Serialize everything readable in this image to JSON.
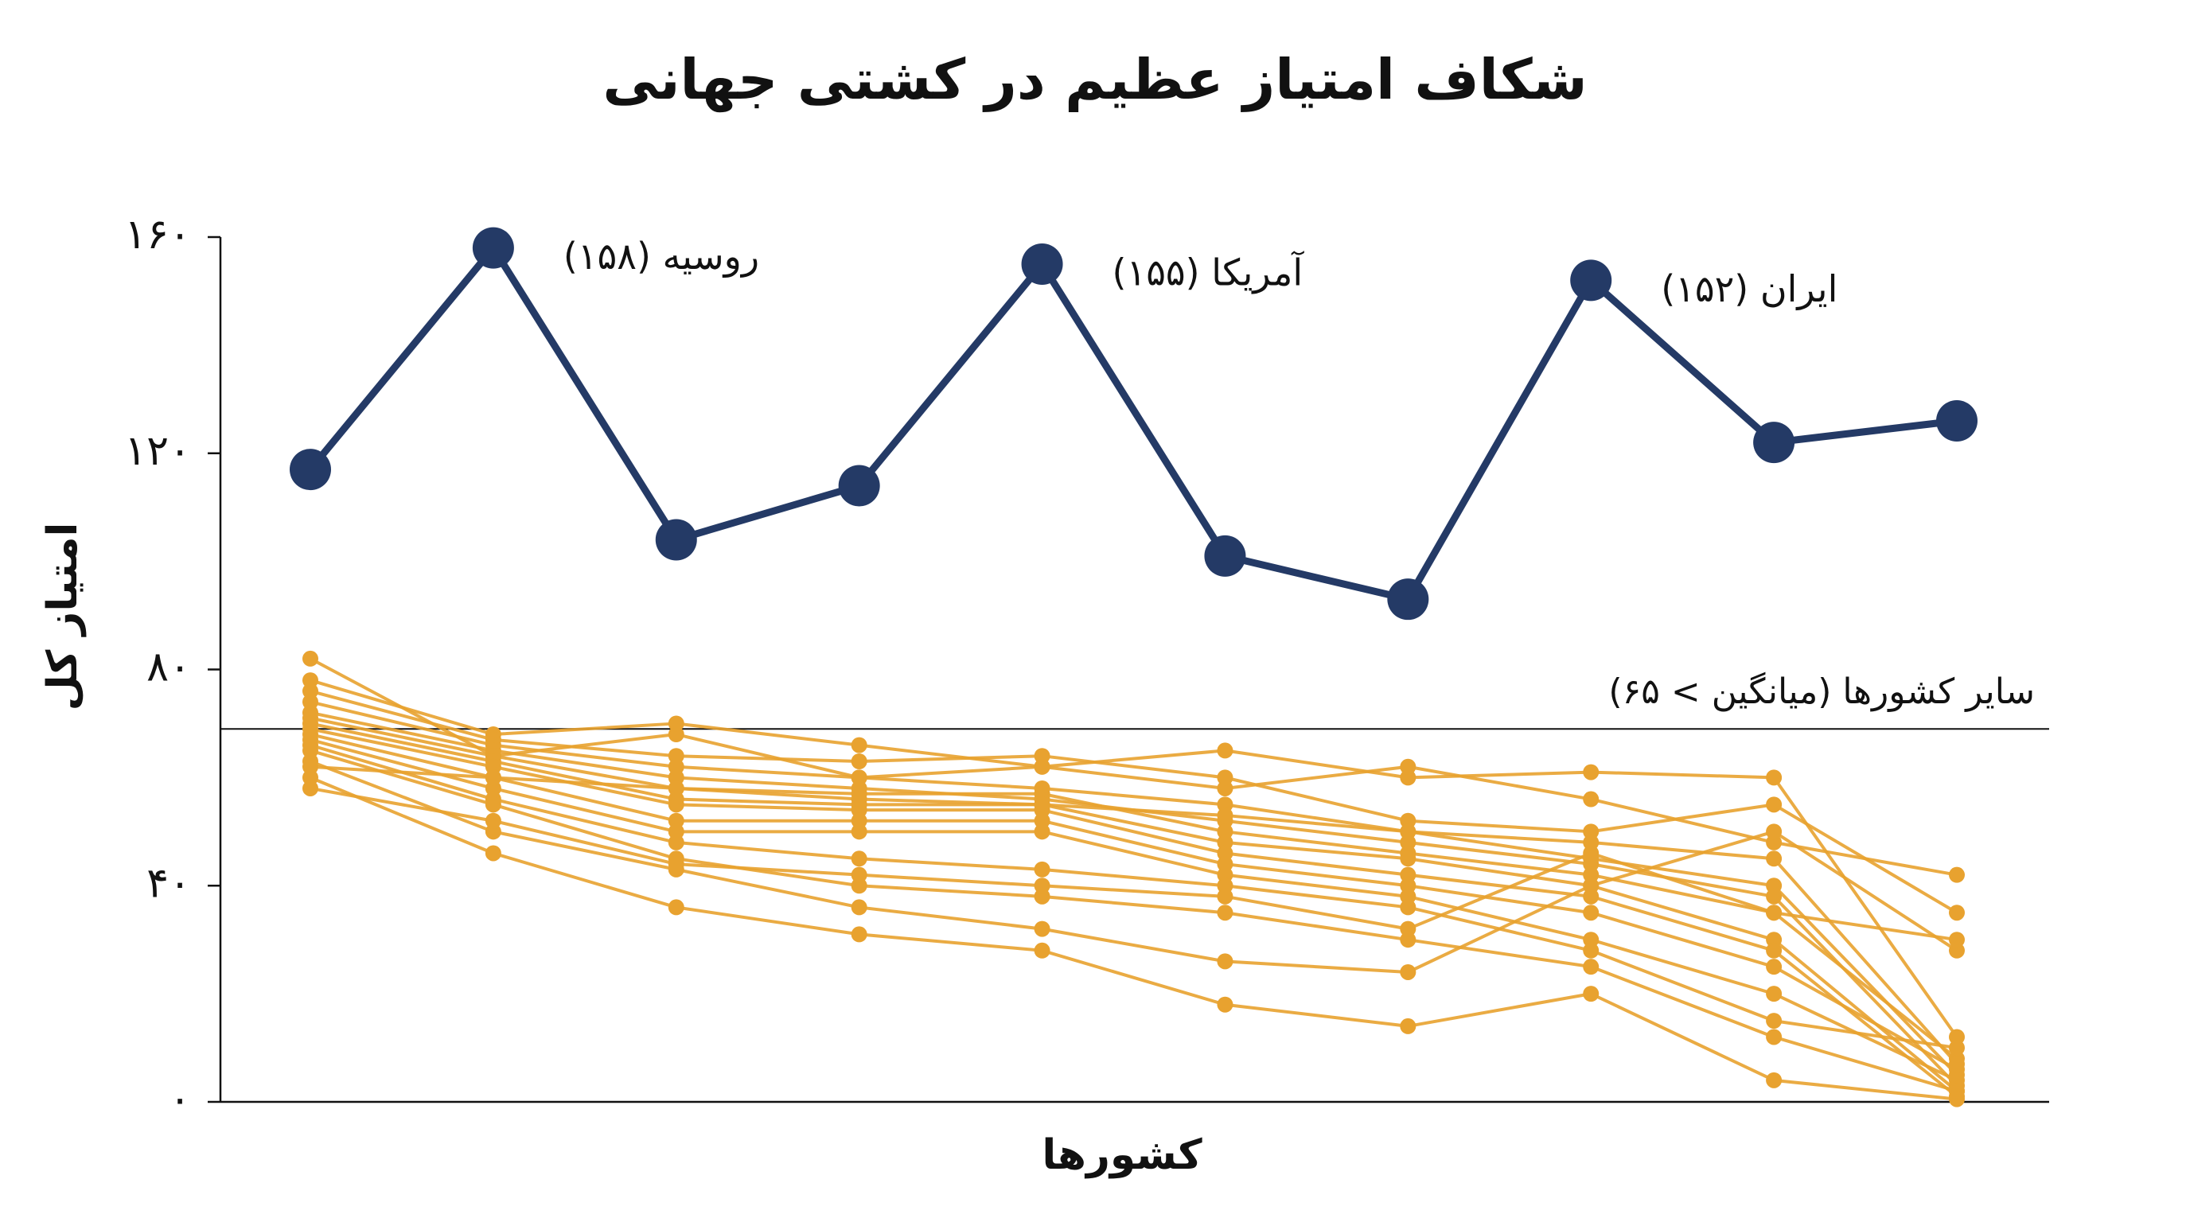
{
  "chart_data": {
    "type": "line",
    "title": "شکاف امتیاز عظیم در کشتی جهانی",
    "x_label": "کشورها",
    "y_label": "امتیاز کل",
    "categories": [
      null,
      null,
      null,
      null,
      null,
      null,
      null,
      null,
      null,
      null
    ],
    "ylim": [
      0,
      160
    ],
    "yticks": [
      {
        "value": 0,
        "label": "۰"
      },
      {
        "value": 40,
        "label": "۴۰"
      },
      {
        "value": 80,
        "label": "۸۰"
      },
      {
        "value": 120,
        "label": "۱۲۰"
      },
      {
        "value": 160,
        "label": "۱۶۰"
      }
    ],
    "reference_line": {
      "value": 69,
      "label": "سایر کشورها (میانگین > ۶۵)"
    },
    "series": [
      {
        "color": "#e8a22f",
        "values": [
          82,
          64,
          68,
          60,
          62,
          65,
          60,
          61,
          60,
          12
        ]
      },
      {
        "color": "#e8a22f",
        "values": [
          78,
          68,
          70,
          66,
          62,
          58,
          62,
          56,
          48,
          42
        ]
      },
      {
        "color": "#e8a22f",
        "values": [
          76,
          67,
          64,
          63,
          64,
          60,
          52,
          50,
          55,
          35
        ]
      },
      {
        "color": "#e8a22f",
        "values": [
          74,
          66,
          62,
          60,
          58,
          55,
          50,
          45,
          40,
          5
        ]
      },
      {
        "color": "#e8a22f",
        "values": [
          72,
          65,
          60,
          58,
          56,
          52,
          48,
          44,
          38,
          3
        ]
      },
      {
        "color": "#e8a22f",
        "values": [
          71,
          64,
          58,
          57,
          57,
          50,
          46,
          42,
          35,
          8
        ]
      },
      {
        "color": "#e8a22f",
        "values": [
          70,
          63,
          56,
          55,
          55,
          48,
          45,
          40,
          30,
          2
        ]
      },
      {
        "color": "#e8a22f",
        "values": [
          69,
          62,
          55,
          54,
          54,
          46,
          42,
          38,
          28,
          1
        ]
      },
      {
        "color": "#e8a22f",
        "values": [
          68,
          60,
          52,
          52,
          52,
          44,
          40,
          35,
          25,
          6
        ]
      },
      {
        "color": "#e8a22f",
        "values": [
          67,
          58,
          50,
          50,
          50,
          42,
          38,
          30,
          20,
          4
        ]
      },
      {
        "color": "#e8a22f",
        "values": [
          66,
          56,
          48,
          45,
          43,
          40,
          36,
          28,
          15,
          10
        ]
      },
      {
        "color": "#e8a22f",
        "values": [
          65,
          55,
          45,
          40,
          38,
          35,
          30,
          25,
          12,
          2
        ]
      },
      {
        "color": "#e8a22f",
        "values": [
          63,
          50,
          43,
          36,
          32,
          26,
          24,
          40,
          50,
          28
        ]
      },
      {
        "color": "#e8a22f",
        "values": [
          60,
          46,
          36,
          31,
          28,
          18,
          14,
          20,
          4,
          0.5
        ]
      },
      {
        "color": "#e8a22f",
        "values": [
          58,
          52,
          44,
          42,
          40,
          38,
          32,
          46,
          35,
          30
        ]
      },
      {
        "color": "#e8a22f",
        "values": [
          62,
          60,
          58,
          56,
          55,
          53,
          50,
          48,
          45,
          7
        ]
      },
      {
        "color": "#243a66",
        "values": [
          117,
          158,
          104,
          114,
          155,
          101,
          93,
          152,
          122,
          126
        ],
        "point_labels": [
          null,
          "روسیه (۱۵۸)",
          null,
          null,
          "آمریکا (۱۵۵)",
          null,
          null,
          "ایران (۱۵۲)",
          null,
          null
        ]
      }
    ]
  }
}
